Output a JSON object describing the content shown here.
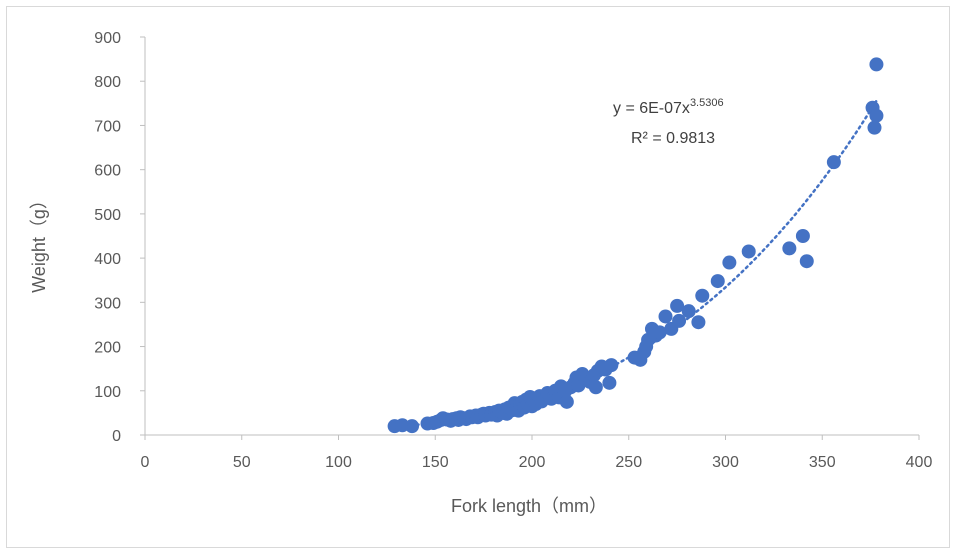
{
  "chart_data": {
    "type": "scatter",
    "title": "",
    "xlabel": "Fork length（mm）",
    "ylabel": "Weight（g）",
    "xlim": [
      0,
      400
    ],
    "ylim": [
      0,
      900
    ],
    "x_ticks": [
      "0",
      "50",
      "100",
      "150",
      "200",
      "250",
      "300",
      "350",
      "400"
    ],
    "y_ticks": [
      "0",
      "100",
      "200",
      "300",
      "400",
      "500",
      "600",
      "700",
      "800",
      "900"
    ],
    "grid": false,
    "legend": "none",
    "marker_color": "#4472c4",
    "trendline": {
      "type": "power",
      "a": 6e-07,
      "b": 3.5306,
      "style": "dotted",
      "color": "#4472c4",
      "x_range": [
        128,
        378
      ]
    },
    "annotation": {
      "equation_prefix": "y = 6E-07x",
      "equation_exponent": "3.5306",
      "r_squared": "R² = 0.9813"
    },
    "points": [
      [
        129,
        20
      ],
      [
        133,
        22
      ],
      [
        138,
        20
      ],
      [
        146,
        26
      ],
      [
        149,
        27
      ],
      [
        151,
        30
      ],
      [
        153,
        34
      ],
      [
        154,
        38
      ],
      [
        156,
        35
      ],
      [
        158,
        32
      ],
      [
        159,
        36
      ],
      [
        161,
        38
      ],
      [
        162,
        34
      ],
      [
        163,
        40
      ],
      [
        165,
        38
      ],
      [
        166,
        36
      ],
      [
        168,
        42
      ],
      [
        169,
        40
      ],
      [
        171,
        44
      ],
      [
        172,
        40
      ],
      [
        174,
        46
      ],
      [
        175,
        48
      ],
      [
        176,
        44
      ],
      [
        178,
        50
      ],
      [
        179,
        46
      ],
      [
        181,
        52
      ],
      [
        182,
        44
      ],
      [
        183,
        55
      ],
      [
        185,
        50
      ],
      [
        186,
        58
      ],
      [
        187,
        48
      ],
      [
        188,
        62
      ],
      [
        190,
        56
      ],
      [
        191,
        72
      ],
      [
        192,
        64
      ],
      [
        193,
        55
      ],
      [
        194,
        68
      ],
      [
        195,
        75
      ],
      [
        196,
        62
      ],
      [
        197,
        80
      ],
      [
        198,
        70
      ],
      [
        199,
        86
      ],
      [
        200,
        65
      ],
      [
        201,
        78
      ],
      [
        202,
        70
      ],
      [
        204,
        88
      ],
      [
        205,
        76
      ],
      [
        208,
        95
      ],
      [
        210,
        82
      ],
      [
        212,
        100
      ],
      [
        214,
        85
      ],
      [
        215,
        110
      ],
      [
        217,
        98
      ],
      [
        218,
        75
      ],
      [
        220,
        108
      ],
      [
        222,
        118
      ],
      [
        223,
        130
      ],
      [
        224,
        112
      ],
      [
        226,
        138
      ],
      [
        228,
        125
      ],
      [
        230,
        120
      ],
      [
        232,
        135
      ],
      [
        233,
        108
      ],
      [
        234,
        145
      ],
      [
        236,
        155
      ],
      [
        238,
        148
      ],
      [
        240,
        118
      ],
      [
        241,
        158
      ],
      [
        253,
        175
      ],
      [
        256,
        170
      ],
      [
        258,
        188
      ],
      [
        259,
        200
      ],
      [
        260,
        215
      ],
      [
        262,
        240
      ],
      [
        264,
        225
      ],
      [
        266,
        232
      ],
      [
        269,
        268
      ],
      [
        272,
        240
      ],
      [
        275,
        292
      ],
      [
        276,
        258
      ],
      [
        281,
        280
      ],
      [
        286,
        255
      ],
      [
        288,
        315
      ],
      [
        296,
        348
      ],
      [
        302,
        390
      ],
      [
        312,
        415
      ],
      [
        333,
        422
      ],
      [
        340,
        450
      ],
      [
        342,
        393
      ],
      [
        356,
        617
      ],
      [
        376,
        740
      ],
      [
        377,
        695
      ],
      [
        378,
        722
      ],
      [
        378,
        838
      ]
    ]
  }
}
